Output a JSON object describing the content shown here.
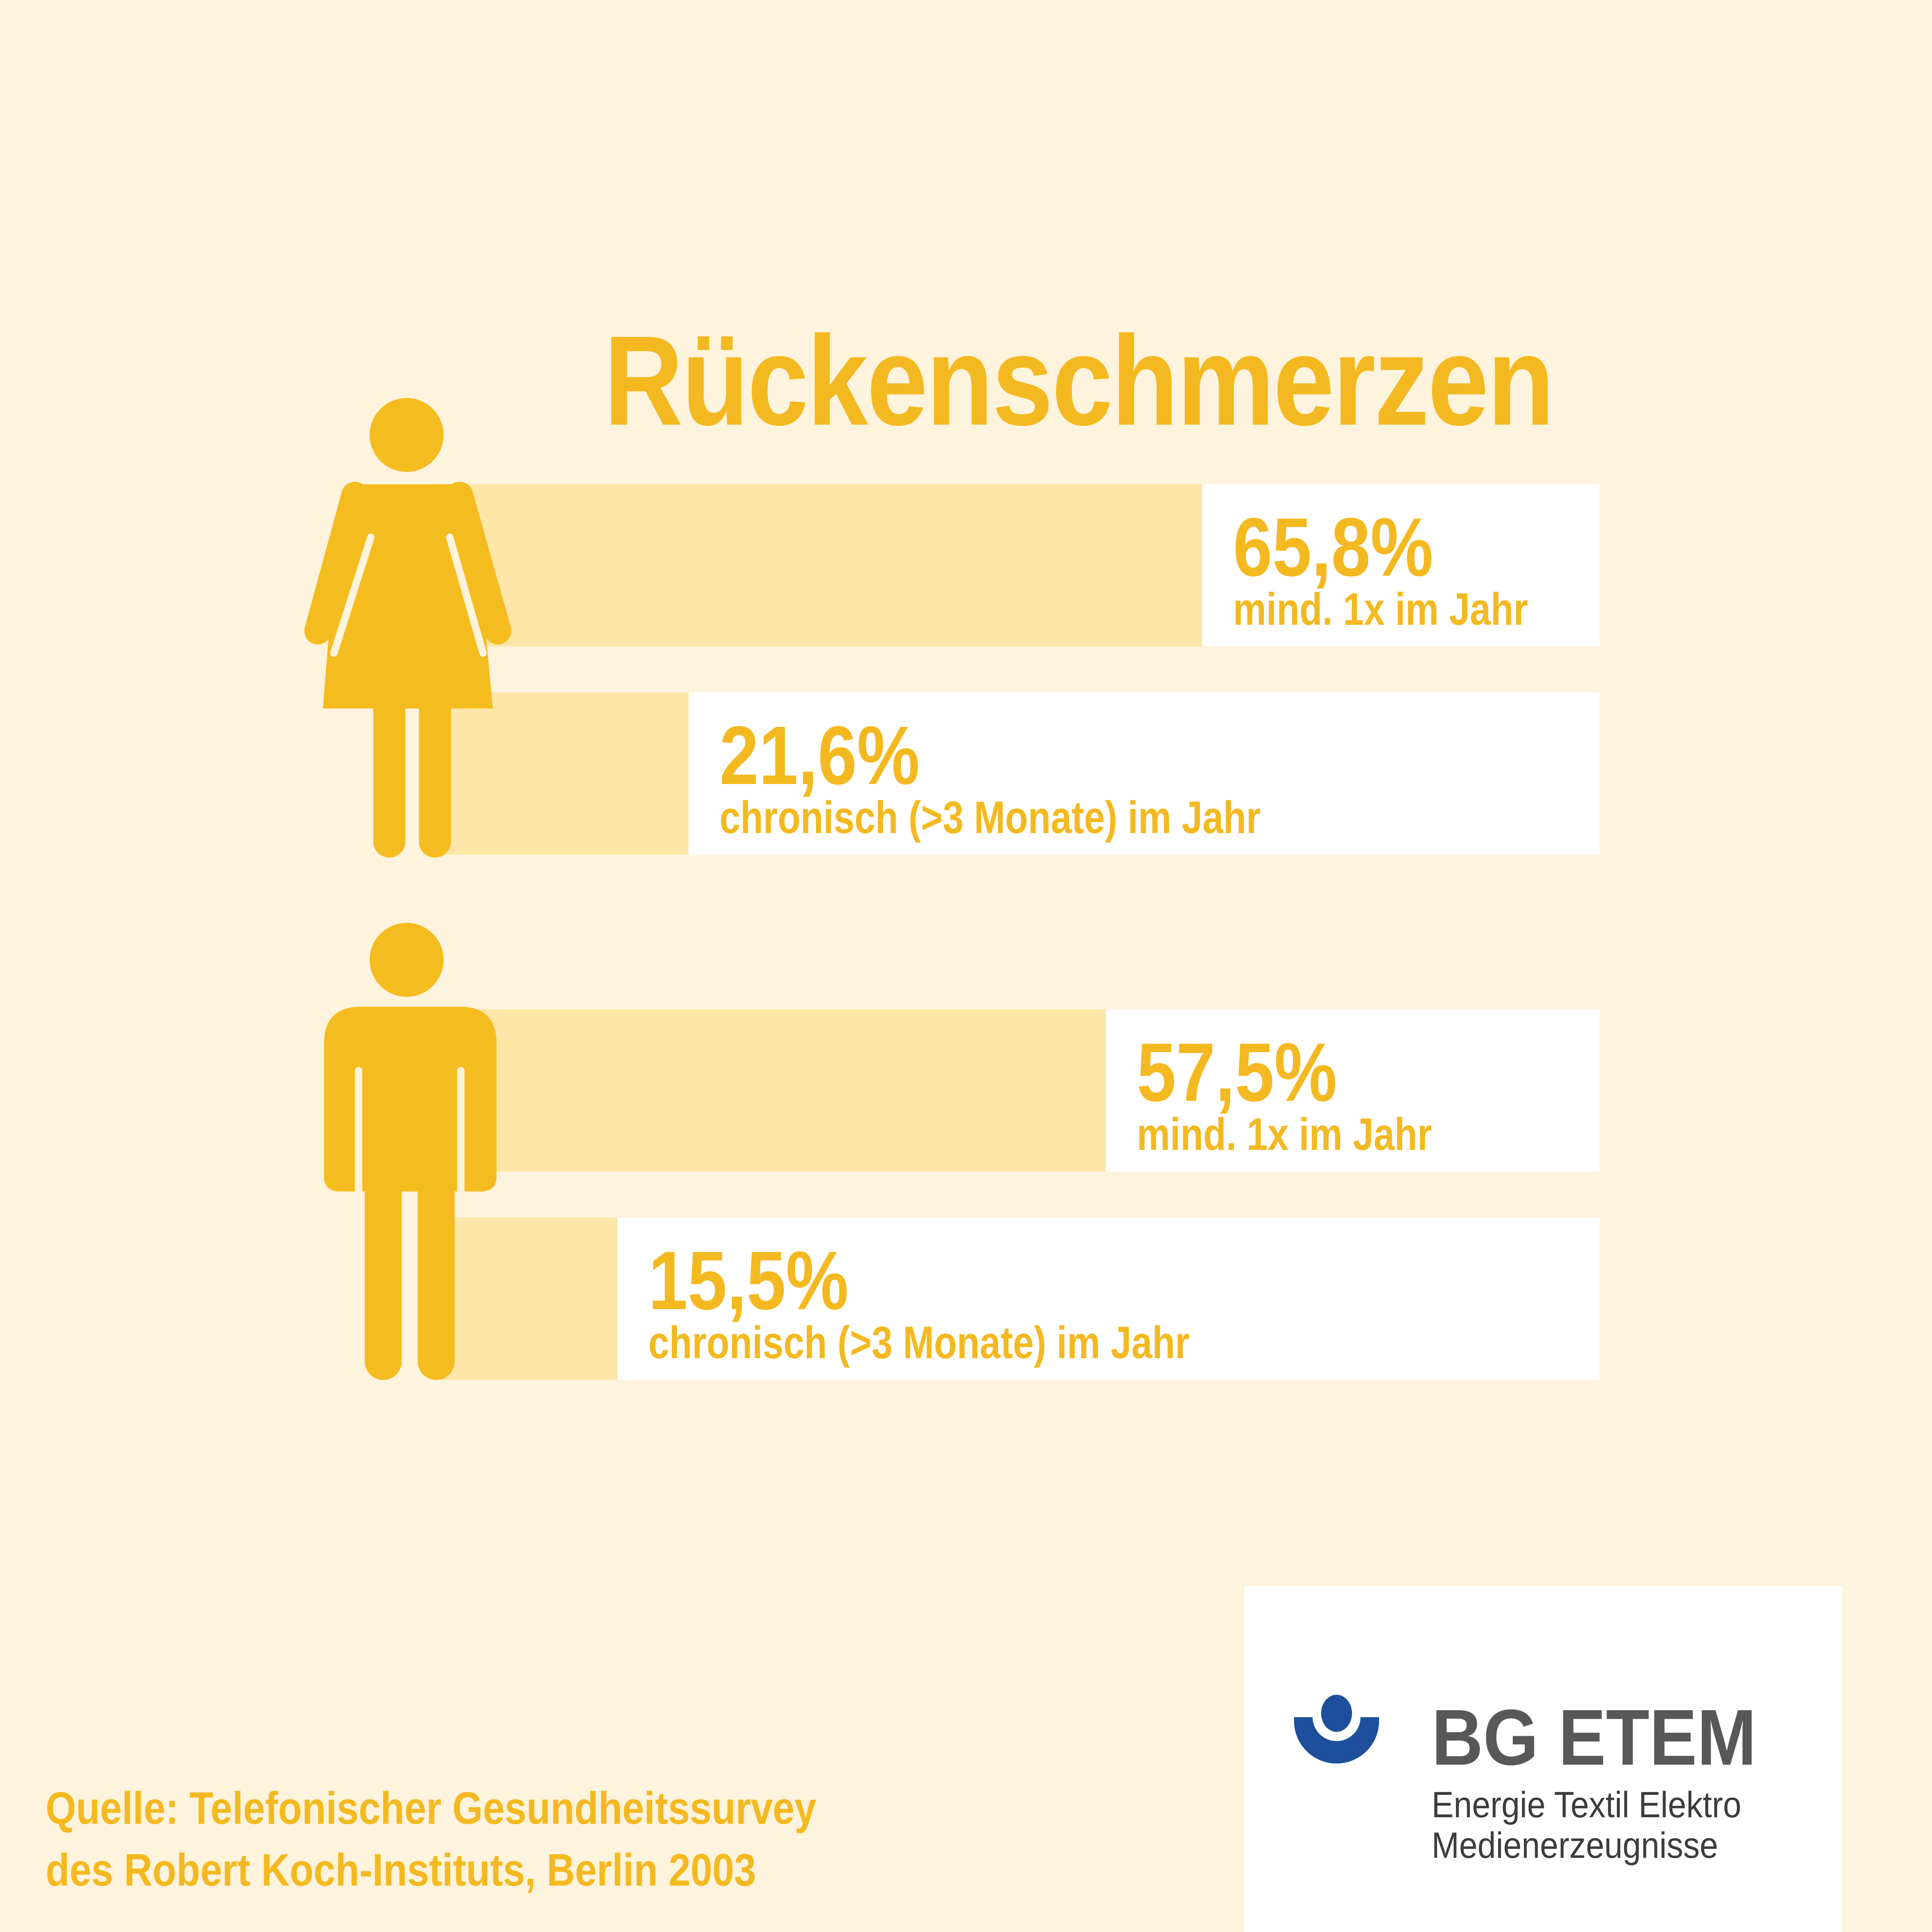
{
  "chart_data": {
    "type": "bar",
    "orientation": "horizontal",
    "title": "Rückenschmerzen",
    "xlim": [
      0,
      100
    ],
    "groups": [
      {
        "figure": "female-figure-icon",
        "bars": [
          {
            "value": 65.8,
            "value_label": "65,8%",
            "label": "mind. 1x im Jahr"
          },
          {
            "value": 21.6,
            "value_label": "21,6%",
            "label": "chronisch (>3 Monate) im Jahr"
          }
        ]
      },
      {
        "figure": "male-figure-icon",
        "bars": [
          {
            "value": 57.5,
            "value_label": "57,5%",
            "label": "mind. 1x im Jahr"
          },
          {
            "value": 15.5,
            "value_label": "15,5%",
            "label": "chronisch (>3 Monate) im Jahr"
          }
        ]
      }
    ],
    "grid": false
  },
  "source": {
    "prefix": "Quelle:",
    "line1": "Telefonischer Gesundheitssurvey",
    "line2": "des Robert Koch-Instituts, Berlin 2003"
  },
  "logo": {
    "name": "BG ETEM",
    "line1": "Energie Textil Elektro",
    "line2": "Medienerzeugnisse"
  },
  "colors": {
    "background": "#fef3dc",
    "accent": "#f4b920",
    "figure": "#f5bc1f",
    "bar_fill": "#fde6a7",
    "bar_track": "#ffffff",
    "logo_blue": "#1d4f9c",
    "logo_gray": "#58585a"
  }
}
